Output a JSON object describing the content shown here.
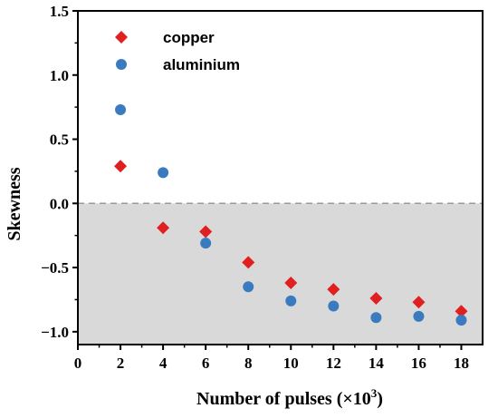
{
  "chart_data": {
    "type": "scatter",
    "xlabel": "Number of pulses (×10",
    "xlabel_sup": "3",
    "xlabel_close": ")",
    "ylabel": "Skewness",
    "xlim": [
      0,
      19
    ],
    "ylim": [
      -1.1,
      1.5
    ],
    "x_ticks": [
      0,
      2,
      4,
      6,
      8,
      10,
      12,
      14,
      16,
      18
    ],
    "x_tick_labels": [
      "0",
      "2",
      "4",
      "6",
      "8",
      "10",
      "12",
      "14",
      "16",
      "18"
    ],
    "y_ticks": [
      1.5,
      1.0,
      0.5,
      0.0,
      -0.5,
      -1.0
    ],
    "y_tick_labels": [
      "1.5",
      "1.0",
      "0.5",
      "0.0",
      "−0.5",
      "−1.0"
    ],
    "reference_line": 0.0,
    "shaded_region": [
      -1.1,
      0.0
    ],
    "shade_color": "#d9d9d9",
    "legend_position": "top-left",
    "series": [
      {
        "name": "copper",
        "marker": "diamond",
        "color": "#e02020",
        "x": [
          2,
          4,
          6,
          8,
          10,
          12,
          14,
          16,
          18
        ],
        "y": [
          0.29,
          -0.19,
          -0.22,
          -0.46,
          -0.62,
          -0.67,
          -0.74,
          -0.77,
          -0.84
        ]
      },
      {
        "name": "aluminium",
        "marker": "circle",
        "color": "#3a7bbf",
        "x": [
          2,
          4,
          6,
          8,
          10,
          12,
          14,
          16,
          18
        ],
        "y": [
          0.73,
          0.24,
          -0.31,
          -0.65,
          -0.76,
          -0.8,
          -0.89,
          -0.88,
          -0.91
        ]
      }
    ]
  }
}
